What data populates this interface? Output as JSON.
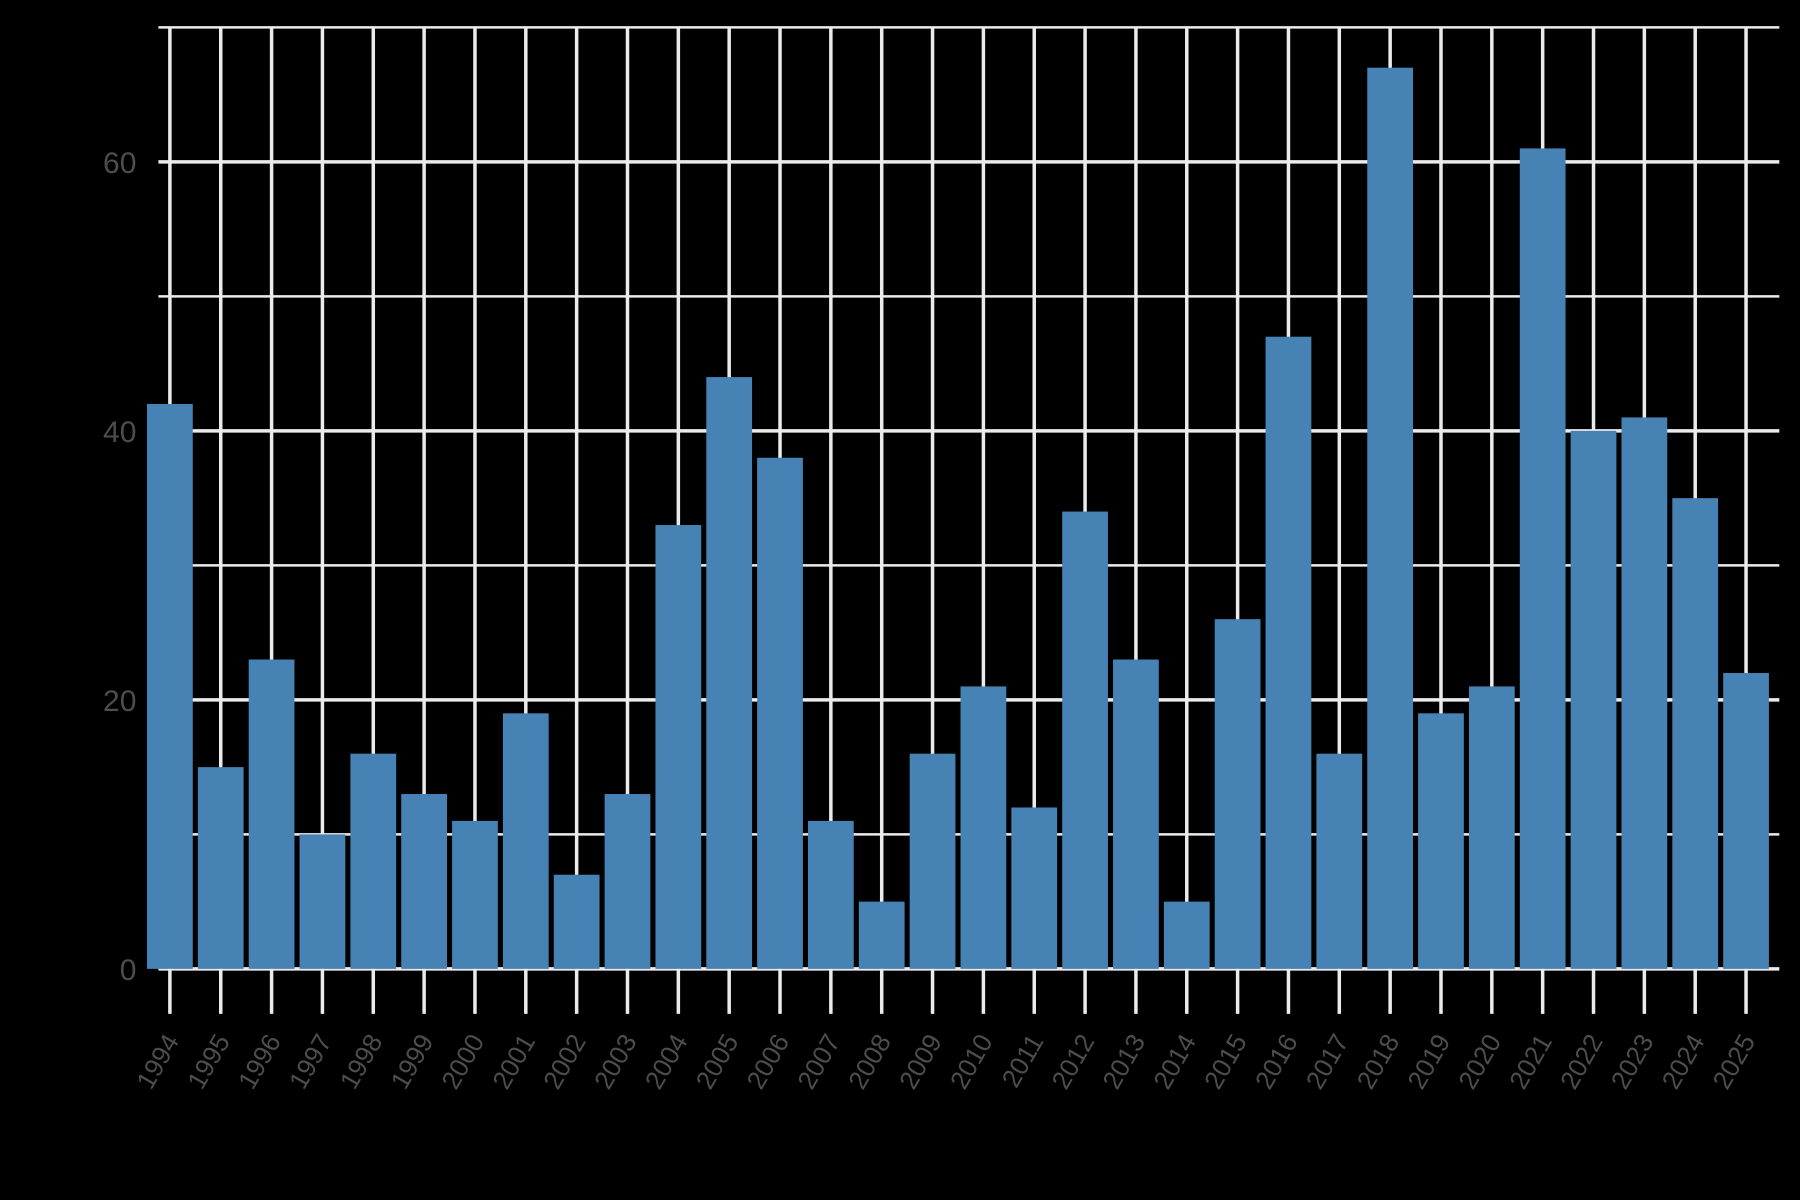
{
  "chart_data": {
    "type": "bar",
    "title": "",
    "xlabel": "",
    "ylabel": "",
    "categories": [
      "1994",
      "1995",
      "1996",
      "1997",
      "1998",
      "1999",
      "2000",
      "2001",
      "2002",
      "2003",
      "2004",
      "2005",
      "2006",
      "2007",
      "2008",
      "2009",
      "2010",
      "2011",
      "2012",
      "2013",
      "2014",
      "2015",
      "2016",
      "2017",
      "2018",
      "2019",
      "2020",
      "2021",
      "2022",
      "2023",
      "2024",
      "2025"
    ],
    "values": [
      42,
      15,
      23,
      10,
      16,
      13,
      11,
      19,
      7,
      13,
      33,
      44,
      38,
      11,
      5,
      16,
      21,
      12,
      34,
      23,
      5,
      26,
      47,
      16,
      67,
      19,
      21,
      61,
      40,
      41,
      35,
      22
    ],
    "ylim": [
      0,
      70
    ],
    "yticks": [
      0,
      20,
      40,
      60
    ],
    "grid": true,
    "legend": null,
    "colors": {
      "bar": "#4682b4",
      "grid": "#ebebeb",
      "background": "#000000",
      "text": "#4d4d4d"
    }
  }
}
